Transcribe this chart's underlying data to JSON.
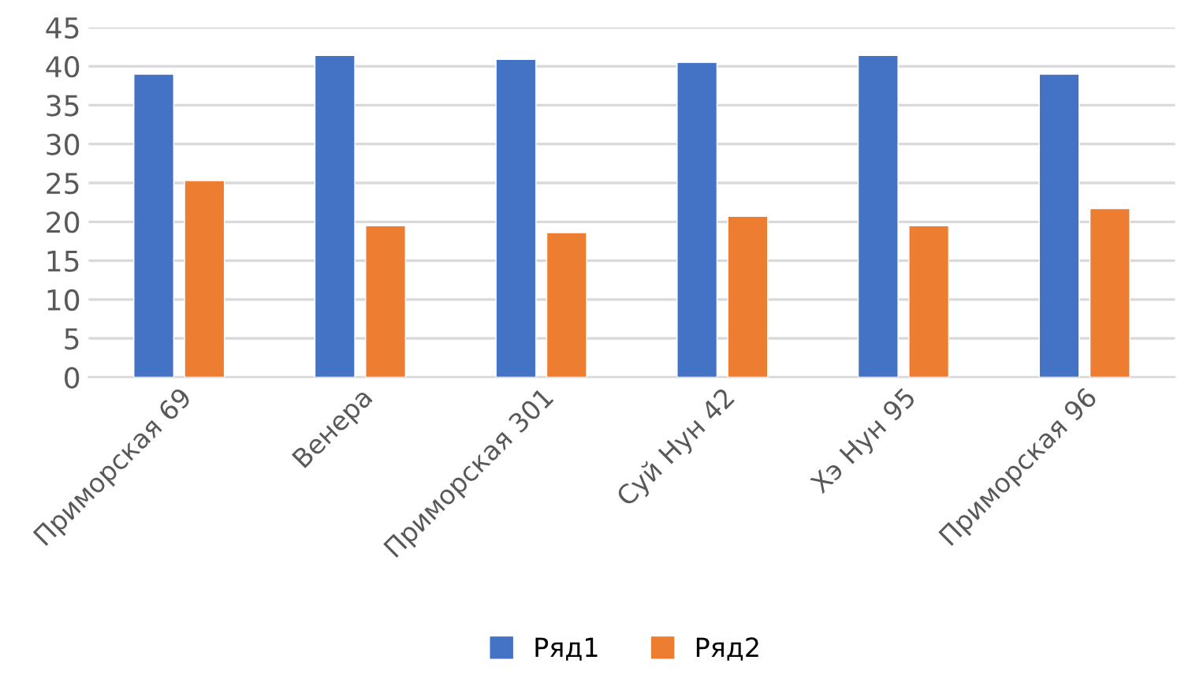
{
  "chart_data": {
    "type": "bar",
    "categories": [
      "Приморская 69",
      "Венера",
      "Приморская 301",
      "Суй Нун 42",
      "Хэ Нун 95",
      "Приморская 96"
    ],
    "series": [
      {
        "name": "Ряд1",
        "color": "#4472c4",
        "values": [
          39.0,
          41.4,
          40.9,
          40.5,
          41.4,
          39.0
        ]
      },
      {
        "name": "Ряд2",
        "color": "#ed7d31",
        "values": [
          25.3,
          19.5,
          18.6,
          20.7,
          19.5,
          21.7
        ]
      }
    ],
    "ylim": [
      0,
      45
    ],
    "yticks": [
      0,
      5,
      10,
      15,
      20,
      25,
      30,
      35,
      40,
      45
    ],
    "grid": "y",
    "legend": "bottom"
  }
}
